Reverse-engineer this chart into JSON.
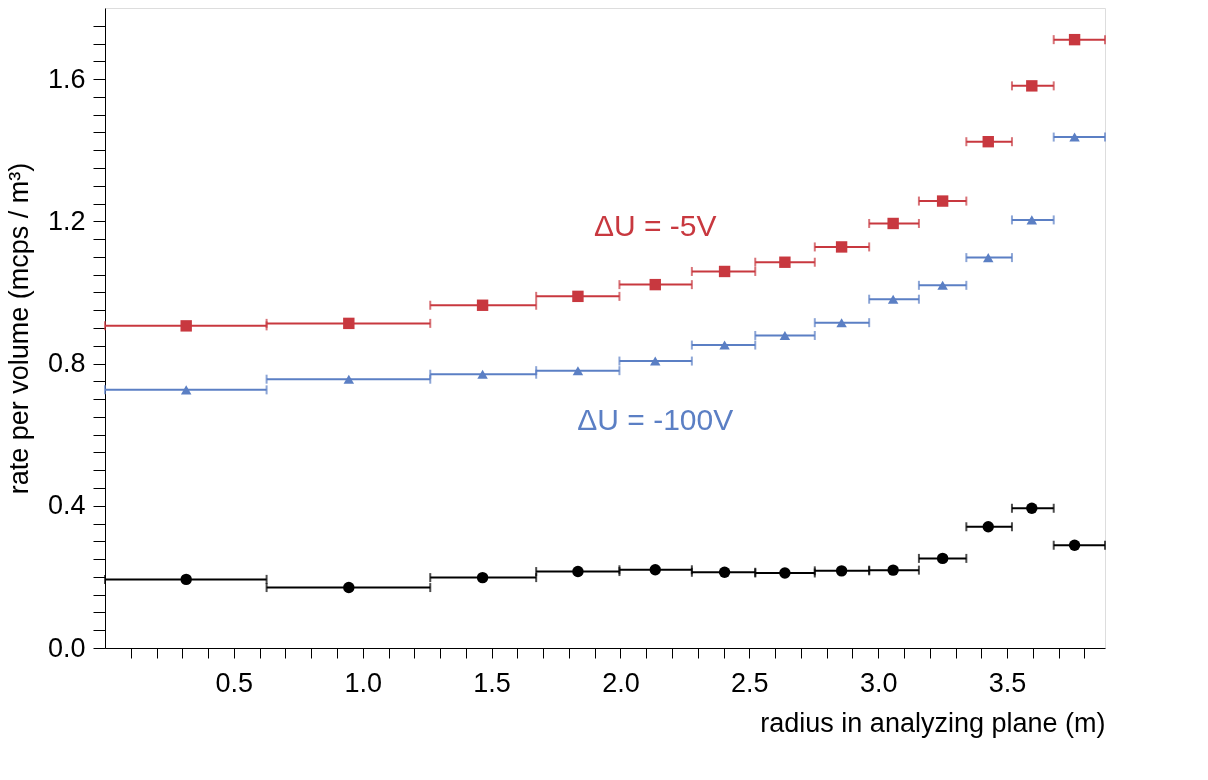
{
  "chart_data": {
    "type": "scatter",
    "xlabel": "radius in analyzing plane (m)",
    "ylabel": "rate per volume (mcps / m³)",
    "x": [
      0.315,
      0.946,
      1.465,
      1.835,
      2.135,
      2.404,
      2.638,
      2.858,
      3.058,
      3.25,
      3.427,
      3.596,
      3.762
    ],
    "series": [
      {
        "name": "ΔU = -5V",
        "color": "#c8383f",
        "marker": "square",
        "values": [
          0.906,
          0.913,
          0.964,
          0.989,
          1.022,
          1.059,
          1.085,
          1.128,
          1.194,
          1.257,
          1.424,
          1.581,
          1.711
        ],
        "xerrors": [
          [
            0,
            0.627
          ],
          [
            0.627,
            1.262
          ],
          [
            1.262,
            1.673
          ],
          [
            1.673,
            1.996
          ],
          [
            1.996,
            2.277
          ],
          [
            2.277,
            2.523
          ],
          [
            2.523,
            2.754
          ],
          [
            2.754,
            2.965
          ],
          [
            2.965,
            3.158
          ],
          [
            3.158,
            3.342
          ],
          [
            3.342,
            3.519
          ],
          [
            3.519,
            3.681
          ],
          [
            3.681,
            3.88
          ]
        ]
      },
      {
        "name": "ΔU = -100V",
        "color": "#5b7fc4",
        "marker": "triangle",
        "values": [
          0.726,
          0.756,
          0.77,
          0.78,
          0.807,
          0.852,
          0.879,
          0.915,
          0.981,
          1.02,
          1.098,
          1.204,
          1.437
        ],
        "xerrors": [
          [
            0,
            0.627
          ],
          [
            0.627,
            1.262
          ],
          [
            1.262,
            1.673
          ],
          [
            1.673,
            1.996
          ],
          [
            1.996,
            2.277
          ],
          [
            2.277,
            2.523
          ],
          [
            2.523,
            2.754
          ],
          [
            2.754,
            2.965
          ],
          [
            2.965,
            3.158
          ],
          [
            3.158,
            3.342
          ],
          [
            3.342,
            3.519
          ],
          [
            3.519,
            3.681
          ],
          [
            3.681,
            3.88
          ]
        ]
      },
      {
        "color": "#000000",
        "marker": "circle",
        "values": [
          0.193,
          0.17,
          0.198,
          0.215,
          0.22,
          0.213,
          0.211,
          0.217,
          0.219,
          0.252,
          0.341,
          0.393,
          0.289
        ],
        "xerrors": [
          [
            0,
            0.627
          ],
          [
            0.627,
            1.262
          ],
          [
            1.262,
            1.673
          ],
          [
            1.673,
            1.996
          ],
          [
            1.996,
            2.277
          ],
          [
            2.277,
            2.523
          ],
          [
            2.523,
            2.754
          ],
          [
            2.754,
            2.965
          ],
          [
            2.965,
            3.158
          ],
          [
            3.158,
            3.342
          ],
          [
            3.342,
            3.519
          ],
          [
            3.519,
            3.681
          ],
          [
            3.681,
            3.88
          ]
        ]
      }
    ],
    "xlim": [
      0,
      3.88
    ],
    "ylim": [
      0,
      1.8
    ],
    "xticks": [
      {
        "value": 0.1,
        "label": null
      },
      {
        "value": 0.2,
        "label": null
      },
      {
        "value": 0.3,
        "label": null
      },
      {
        "value": 0.4,
        "label": null
      },
      {
        "value": 0.5,
        "label": "0.5"
      },
      {
        "value": 0.6,
        "label": null
      },
      {
        "value": 0.7,
        "label": null
      },
      {
        "value": 0.8,
        "label": null
      },
      {
        "value": 0.9,
        "label": null
      },
      {
        "value": 1.0,
        "label": "1.0"
      },
      {
        "value": 1.1,
        "label": null
      },
      {
        "value": 1.2,
        "label": null
      },
      {
        "value": 1.3,
        "label": null
      },
      {
        "value": 1.4,
        "label": null
      },
      {
        "value": 1.5,
        "label": "1.5"
      },
      {
        "value": 1.6,
        "label": null
      },
      {
        "value": 1.7,
        "label": null
      },
      {
        "value": 1.8,
        "label": null
      },
      {
        "value": 1.9,
        "label": null
      },
      {
        "value": 2.0,
        "label": "2.0"
      },
      {
        "value": 2.1,
        "label": null
      },
      {
        "value": 2.2,
        "label": null
      },
      {
        "value": 2.3,
        "label": null
      },
      {
        "value": 2.4,
        "label": null
      },
      {
        "value": 2.5,
        "label": "2.5"
      },
      {
        "value": 2.6,
        "label": null
      },
      {
        "value": 2.7,
        "label": null
      },
      {
        "value": 2.8,
        "label": null
      },
      {
        "value": 2.9,
        "label": null
      },
      {
        "value": 3.0,
        "label": "3.0"
      },
      {
        "value": 3.1,
        "label": null
      },
      {
        "value": 3.2,
        "label": null
      },
      {
        "value": 3.3,
        "label": null
      },
      {
        "value": 3.4,
        "label": null
      },
      {
        "value": 3.5,
        "label": "3.5"
      },
      {
        "value": 3.6,
        "label": null
      },
      {
        "value": 3.7,
        "label": null
      },
      {
        "value": 3.8,
        "label": null
      }
    ],
    "yticks": [
      {
        "value": 0.0,
        "label": "0.0"
      },
      {
        "value": 0.05,
        "label": null
      },
      {
        "value": 0.1,
        "label": null
      },
      {
        "value": 0.15,
        "label": null
      },
      {
        "value": 0.2,
        "label": null
      },
      {
        "value": 0.25,
        "label": null
      },
      {
        "value": 0.3,
        "label": null
      },
      {
        "value": 0.35,
        "label": null
      },
      {
        "value": 0.4,
        "label": "0.4"
      },
      {
        "value": 0.45,
        "label": null
      },
      {
        "value": 0.5,
        "label": null
      },
      {
        "value": 0.55,
        "label": null
      },
      {
        "value": 0.6,
        "label": null
      },
      {
        "value": 0.65,
        "label": null
      },
      {
        "value": 0.7,
        "label": null
      },
      {
        "value": 0.75,
        "label": null
      },
      {
        "value": 0.8,
        "label": "0.8"
      },
      {
        "value": 0.85,
        "label": null
      },
      {
        "value": 0.9,
        "label": null
      },
      {
        "value": 0.95,
        "label": null
      },
      {
        "value": 1.0,
        "label": null
      },
      {
        "value": 1.05,
        "label": null
      },
      {
        "value": 1.1,
        "label": null
      },
      {
        "value": 1.15,
        "label": null
      },
      {
        "value": 1.2,
        "label": "1.2"
      },
      {
        "value": 1.25,
        "label": null
      },
      {
        "value": 1.3,
        "label": null
      },
      {
        "value": 1.35,
        "label": null
      },
      {
        "value": 1.4,
        "label": null
      },
      {
        "value": 1.45,
        "label": null
      },
      {
        "value": 1.5,
        "label": null
      },
      {
        "value": 1.55,
        "label": null
      },
      {
        "value": 1.6,
        "label": "1.6"
      },
      {
        "value": 1.65,
        "label": null
      },
      {
        "value": 1.7,
        "label": null
      },
      {
        "value": 1.75,
        "label": null
      }
    ],
    "grid": false
  }
}
